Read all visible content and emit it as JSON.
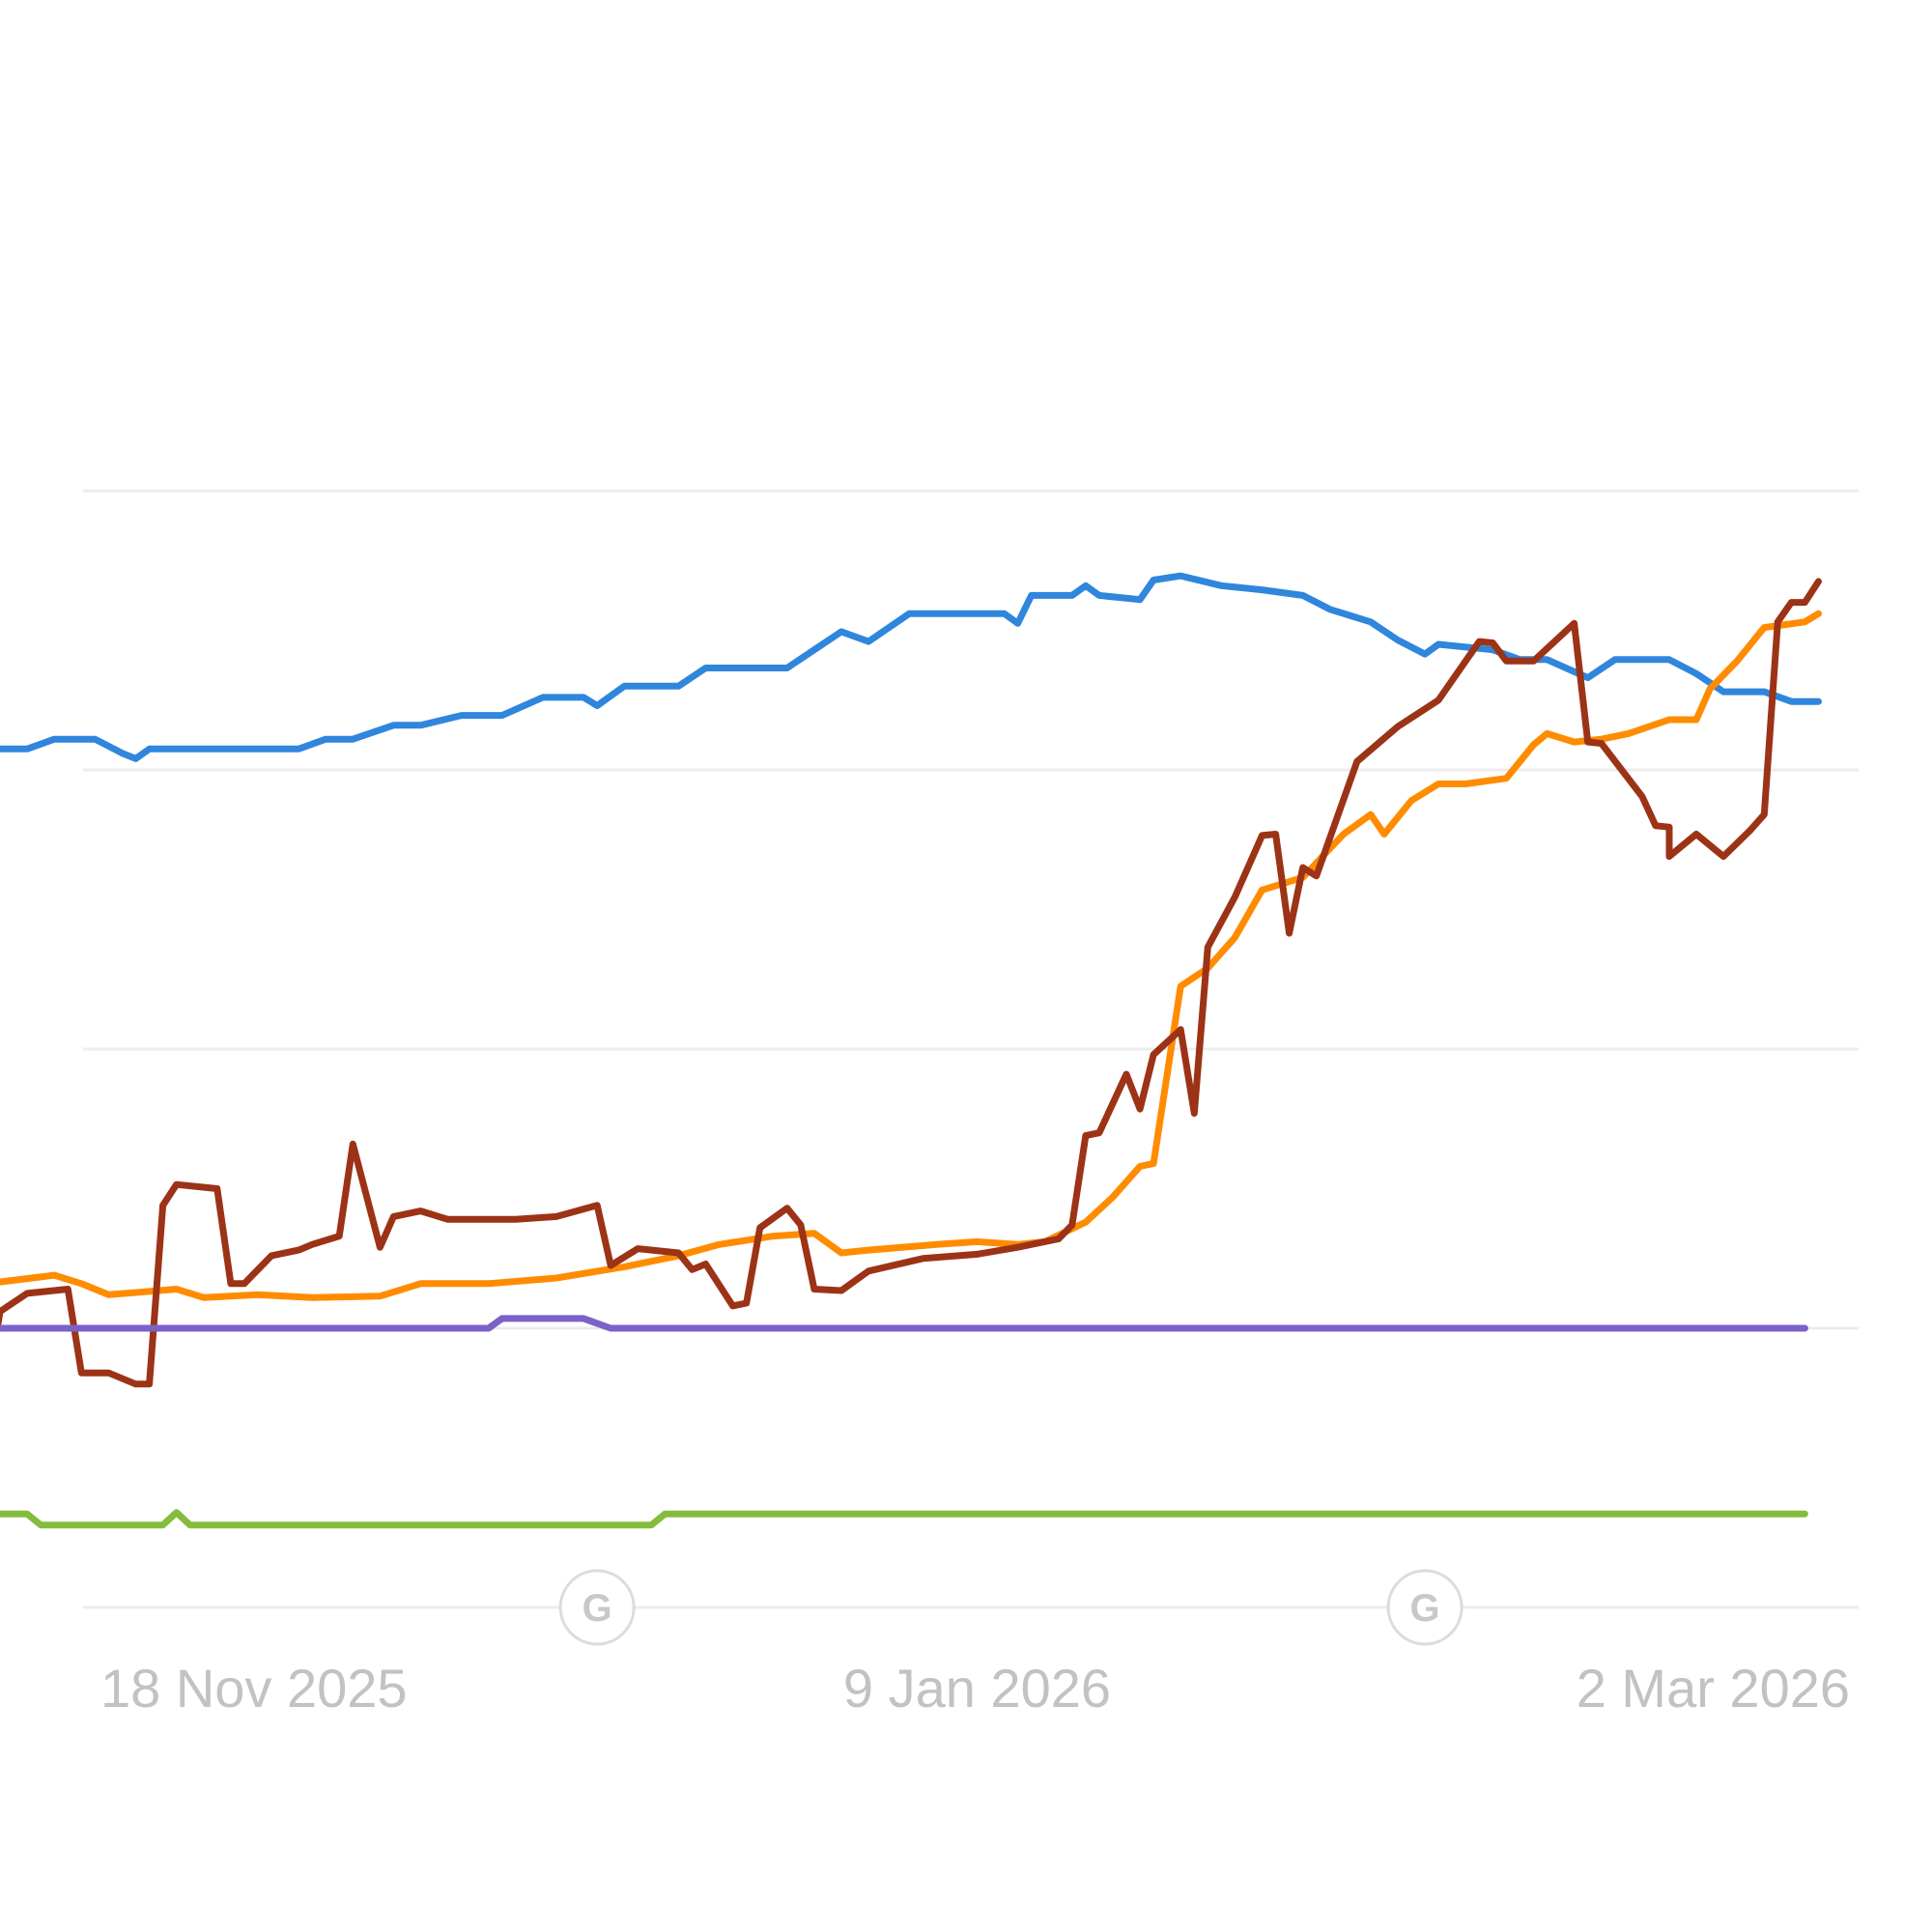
{
  "chart_data": {
    "type": "line",
    "title": "",
    "xlabel": "",
    "ylabel": "",
    "grid": true,
    "x_range": [
      "2025-10-26",
      "2026-03-28"
    ],
    "y_range": [
      0,
      90
    ],
    "y_gridlines": [
      0,
      20,
      40,
      60,
      80
    ],
    "x_ticks": [
      {
        "date": "2025-11-18",
        "label": "18 Nov 2025"
      },
      {
        "date": "2026-01-09",
        "label": "9 Jan 2026"
      },
      {
        "date": "2026-03-02",
        "label": "2 Mar 2026"
      }
    ],
    "annotations": [
      {
        "date": "2025-12-12",
        "icon": "google-update-icon",
        "glyph": "G"
      },
      {
        "date": "2026-02-11",
        "icon": "google-update-icon",
        "glyph": "G"
      }
    ],
    "series": [
      {
        "color": "#2f86dc",
        "points": [
          [
            "2025-10-26",
            61.5
          ],
          [
            "2025-10-31",
            61.5
          ],
          [
            "2025-11-02",
            62.2
          ],
          [
            "2025-11-05",
            62.2
          ],
          [
            "2025-11-07",
            61.2
          ],
          [
            "2025-11-08",
            60.8
          ],
          [
            "2025-11-09",
            61.5
          ],
          [
            "2025-11-20",
            61.5
          ],
          [
            "2025-11-22",
            62.2
          ],
          [
            "2025-11-24",
            62.2
          ],
          [
            "2025-11-27",
            63.2
          ],
          [
            "2025-11-29",
            63.2
          ],
          [
            "2025-12-02",
            63.9
          ],
          [
            "2025-12-05",
            63.9
          ],
          [
            "2025-12-08",
            65.2
          ],
          [
            "2025-12-11",
            65.2
          ],
          [
            "2025-12-12",
            64.6
          ],
          [
            "2025-12-14",
            66.0
          ],
          [
            "2025-12-18",
            66.0
          ],
          [
            "2025-12-20",
            67.3
          ],
          [
            "2025-12-26",
            67.3
          ],
          [
            "2025-12-28",
            68.6
          ],
          [
            "2025-12-30",
            69.9
          ],
          [
            "2026-01-01",
            69.2
          ],
          [
            "2026-01-04",
            71.2
          ],
          [
            "2026-01-11",
            71.2
          ],
          [
            "2026-01-12",
            70.5
          ],
          [
            "2026-01-13",
            72.5
          ],
          [
            "2026-01-16",
            72.5
          ],
          [
            "2026-01-17",
            73.2
          ],
          [
            "2026-01-18",
            72.5
          ],
          [
            "2026-01-21",
            72.2
          ],
          [
            "2026-01-22",
            73.6
          ],
          [
            "2026-01-24",
            73.9
          ],
          [
            "2026-01-27",
            73.2
          ],
          [
            "2026-01-30",
            72.9
          ],
          [
            "2026-02-02",
            72.5
          ],
          [
            "2026-02-04",
            71.5
          ],
          [
            "2026-02-07",
            70.6
          ],
          [
            "2026-02-09",
            69.3
          ],
          [
            "2026-02-11",
            68.3
          ],
          [
            "2026-02-12",
            69.0
          ],
          [
            "2026-02-16",
            68.6
          ],
          [
            "2026-02-18",
            67.9
          ],
          [
            "2026-02-20",
            67.9
          ],
          [
            "2026-02-23",
            66.6
          ],
          [
            "2026-02-25",
            67.9
          ],
          [
            "2026-03-01",
            67.9
          ],
          [
            "2026-03-03",
            66.9
          ],
          [
            "2026-03-05",
            65.6
          ],
          [
            "2026-03-08",
            65.6
          ],
          [
            "2026-03-10",
            64.9
          ],
          [
            "2026-03-12",
            64.9
          ]
        ]
      },
      {
        "color": "#ff8c00",
        "points": [
          [
            "2025-10-26",
            21.8
          ],
          [
            "2025-10-28",
            23.2
          ],
          [
            "2025-11-02",
            23.8
          ],
          [
            "2025-11-04",
            23.2
          ],
          [
            "2025-11-06",
            22.4
          ],
          [
            "2025-11-11",
            22.8
          ],
          [
            "2025-11-13",
            22.2
          ],
          [
            "2025-11-17",
            22.4
          ],
          [
            "2025-11-21",
            22.2
          ],
          [
            "2025-11-26",
            22.3
          ],
          [
            "2025-11-29",
            23.2
          ],
          [
            "2025-12-04",
            23.2
          ],
          [
            "2025-12-09",
            23.6
          ],
          [
            "2025-12-14",
            24.4
          ],
          [
            "2025-12-18",
            25.2
          ],
          [
            "2025-12-21",
            26.0
          ],
          [
            "2025-12-25",
            26.6
          ],
          [
            "2025-12-28",
            26.8
          ],
          [
            "2025-12-30",
            25.4
          ],
          [
            "2026-01-01",
            25.6
          ],
          [
            "2026-01-06",
            26.0
          ],
          [
            "2026-01-09",
            26.2
          ],
          [
            "2026-01-12",
            26.0
          ],
          [
            "2026-01-14",
            26.2
          ],
          [
            "2026-01-17",
            27.6
          ],
          [
            "2026-01-19",
            29.4
          ],
          [
            "2026-01-21",
            31.6
          ],
          [
            "2026-01-22",
            31.8
          ],
          [
            "2026-01-24",
            44.5
          ],
          [
            "2026-01-26",
            45.8
          ],
          [
            "2026-01-28",
            48.0
          ],
          [
            "2026-01-30",
            51.4
          ],
          [
            "2026-02-02",
            52.3
          ],
          [
            "2026-02-05",
            55.4
          ],
          [
            "2026-02-07",
            56.8
          ],
          [
            "2026-02-08",
            55.4
          ],
          [
            "2026-02-10",
            57.8
          ],
          [
            "2026-02-12",
            59.0
          ],
          [
            "2026-02-14",
            59.0
          ],
          [
            "2026-02-17",
            59.4
          ],
          [
            "2026-02-19",
            61.8
          ],
          [
            "2026-02-20",
            62.6
          ],
          [
            "2026-02-22",
            62.0
          ],
          [
            "2026-02-24",
            62.2
          ],
          [
            "2026-02-26",
            62.6
          ],
          [
            "2026-03-01",
            63.6
          ],
          [
            "2026-03-03",
            63.6
          ],
          [
            "2026-03-04",
            65.8
          ],
          [
            "2026-03-06",
            67.8
          ],
          [
            "2026-03-08",
            70.2
          ],
          [
            "2026-03-11",
            70.6
          ],
          [
            "2026-03-12",
            71.2
          ]
        ]
      },
      {
        "color": "#9c3316",
        "points": [
          [
            "2025-10-26",
            15.8
          ],
          [
            "2025-10-28",
            15.2
          ],
          [
            "2025-10-29",
            21.2
          ],
          [
            "2025-10-31",
            22.5
          ],
          [
            "2025-11-03",
            22.8
          ],
          [
            "2025-11-04",
            16.8
          ],
          [
            "2025-11-06",
            16.8
          ],
          [
            "2025-11-08",
            16.0
          ],
          [
            "2025-11-09",
            16.0
          ],
          [
            "2025-11-10",
            28.8
          ],
          [
            "2025-11-11",
            30.3
          ],
          [
            "2025-11-14",
            30.0
          ],
          [
            "2025-11-15",
            23.2
          ],
          [
            "2025-11-16",
            23.2
          ],
          [
            "2025-11-18",
            25.2
          ],
          [
            "2025-11-20",
            25.6
          ],
          [
            "2025-11-21",
            26.0
          ],
          [
            "2025-11-23",
            26.6
          ],
          [
            "2025-11-24",
            33.2
          ],
          [
            "2025-11-26",
            25.8
          ],
          [
            "2025-11-27",
            28.0
          ],
          [
            "2025-11-29",
            28.4
          ],
          [
            "2025-12-01",
            27.8
          ],
          [
            "2025-12-06",
            27.8
          ],
          [
            "2025-12-09",
            28.0
          ],
          [
            "2025-12-12",
            28.8
          ],
          [
            "2025-12-13",
            24.5
          ],
          [
            "2025-12-15",
            25.7
          ],
          [
            "2025-12-18",
            25.4
          ],
          [
            "2025-12-19",
            24.2
          ],
          [
            "2025-12-20",
            24.6
          ],
          [
            "2025-12-22",
            21.6
          ],
          [
            "2025-12-23",
            21.8
          ],
          [
            "2025-12-24",
            27.2
          ],
          [
            "2025-12-26",
            28.6
          ],
          [
            "2025-12-27",
            27.4
          ],
          [
            "2025-12-28",
            22.8
          ],
          [
            "2025-12-30",
            22.7
          ],
          [
            "2026-01-01",
            24.1
          ],
          [
            "2026-01-05",
            25.0
          ],
          [
            "2026-01-09",
            25.3
          ],
          [
            "2026-01-12",
            25.8
          ],
          [
            "2026-01-15",
            26.4
          ],
          [
            "2026-01-16",
            27.4
          ],
          [
            "2026-01-17",
            33.8
          ],
          [
            "2026-01-18",
            34.0
          ],
          [
            "2026-01-20",
            38.2
          ],
          [
            "2026-01-21",
            35.7
          ],
          [
            "2026-01-22",
            39.6
          ],
          [
            "2026-01-24",
            41.4
          ],
          [
            "2026-01-25",
            35.4
          ],
          [
            "2026-01-26",
            47.3
          ],
          [
            "2026-01-28",
            50.9
          ],
          [
            "2026-01-30",
            55.3
          ],
          [
            "2026-01-31",
            55.4
          ],
          [
            "2026-02-01",
            48.3
          ],
          [
            "2026-02-02",
            53.0
          ],
          [
            "2026-02-03",
            52.4
          ],
          [
            "2026-02-06",
            60.6
          ],
          [
            "2026-02-09",
            63.1
          ],
          [
            "2026-02-12",
            65.0
          ],
          [
            "2026-02-15",
            69.2
          ],
          [
            "2026-02-16",
            69.1
          ],
          [
            "2026-02-17",
            67.8
          ],
          [
            "2026-02-19",
            67.8
          ],
          [
            "2026-02-22",
            70.5
          ],
          [
            "2026-02-23",
            62.0
          ],
          [
            "2026-02-24",
            61.9
          ],
          [
            "2026-02-27",
            58.1
          ],
          [
            "2026-02-28",
            56.0
          ],
          [
            "2026-02-29",
            55.9
          ],
          [
            "2026-03-01",
            53.8
          ],
          [
            "2026-03-03",
            55.4
          ],
          [
            "2026-03-05",
            53.8
          ],
          [
            "2026-03-07",
            55.7
          ],
          [
            "2026-03-08",
            56.8
          ],
          [
            "2026-03-09",
            70.6
          ],
          [
            "2026-03-10",
            72.0
          ],
          [
            "2026-03-11",
            72.0
          ],
          [
            "2026-03-12",
            73.5
          ]
        ]
      },
      {
        "color": "#7b61c8",
        "points": [
          [
            "2025-10-26",
            20.0
          ],
          [
            "2025-12-04",
            20.0
          ],
          [
            "2025-12-05",
            20.7
          ],
          [
            "2025-12-11",
            20.7
          ],
          [
            "2025-12-13",
            20.0
          ],
          [
            "2026-03-11",
            20.0
          ]
        ]
      },
      {
        "color": "#84bd3c",
        "points": [
          [
            "2025-10-26",
            6.7
          ],
          [
            "2025-10-31",
            6.7
          ],
          [
            "2025-11-01",
            5.9
          ],
          [
            "2025-11-10",
            5.9
          ],
          [
            "2025-11-11",
            6.8
          ],
          [
            "2025-11-12",
            5.9
          ],
          [
            "2025-12-16",
            5.9
          ],
          [
            "2025-12-17",
            6.7
          ],
          [
            "2026-03-11",
            6.7
          ]
        ]
      }
    ]
  }
}
